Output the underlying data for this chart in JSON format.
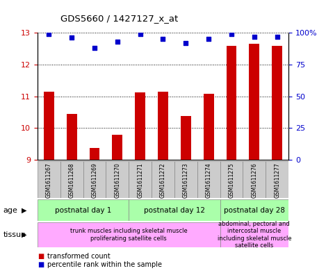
{
  "title": "GDS5660 / 1427127_x_at",
  "samples": [
    "GSM1611267",
    "GSM1611268",
    "GSM1611269",
    "GSM1611270",
    "GSM1611271",
    "GSM1611272",
    "GSM1611273",
    "GSM1611274",
    "GSM1611275",
    "GSM1611276",
    "GSM1611277"
  ],
  "bar_values": [
    11.15,
    10.45,
    9.38,
    9.78,
    11.13,
    11.15,
    10.38,
    11.08,
    12.58,
    12.65,
    12.58
  ],
  "dot_values": [
    99,
    96,
    88,
    93,
    99,
    95,
    92,
    95,
    99,
    97,
    97
  ],
  "ylim_left": [
    9,
    13
  ],
  "ylim_right": [
    0,
    100
  ],
  "yticks_left": [
    9,
    10,
    11,
    12,
    13
  ],
  "yticks_right": [
    0,
    25,
    50,
    75,
    100
  ],
  "bar_color": "#cc0000",
  "dot_color": "#0000cc",
  "bar_width": 0.45,
  "age_groups": [
    {
      "label": "postnatal day 1",
      "start": 0,
      "end": 4,
      "color": "#aaffaa"
    },
    {
      "label": "postnatal day 12",
      "start": 4,
      "end": 8,
      "color": "#aaffaa"
    },
    {
      "label": "postnatal day 28",
      "start": 8,
      "end": 11,
      "color": "#aaffaa"
    }
  ],
  "tissue_groups": [
    {
      "label": "trunk muscles including skeletal muscle\nproliferating satellite cells",
      "start": 0,
      "end": 8,
      "color": "#ffaaff"
    },
    {
      "label": "abdominal, pectoral and\nintercostal muscle\nincluding skeletal muscle\nsatellite cells",
      "start": 8,
      "end": 11,
      "color": "#ffaaff"
    }
  ],
  "legend_items": [
    {
      "label": "transformed count",
      "color": "#cc0000"
    },
    {
      "label": "percentile rank within the sample",
      "color": "#0000cc"
    }
  ],
  "tick_label_color_left": "#cc0000",
  "tick_label_color_right": "#0000cc"
}
